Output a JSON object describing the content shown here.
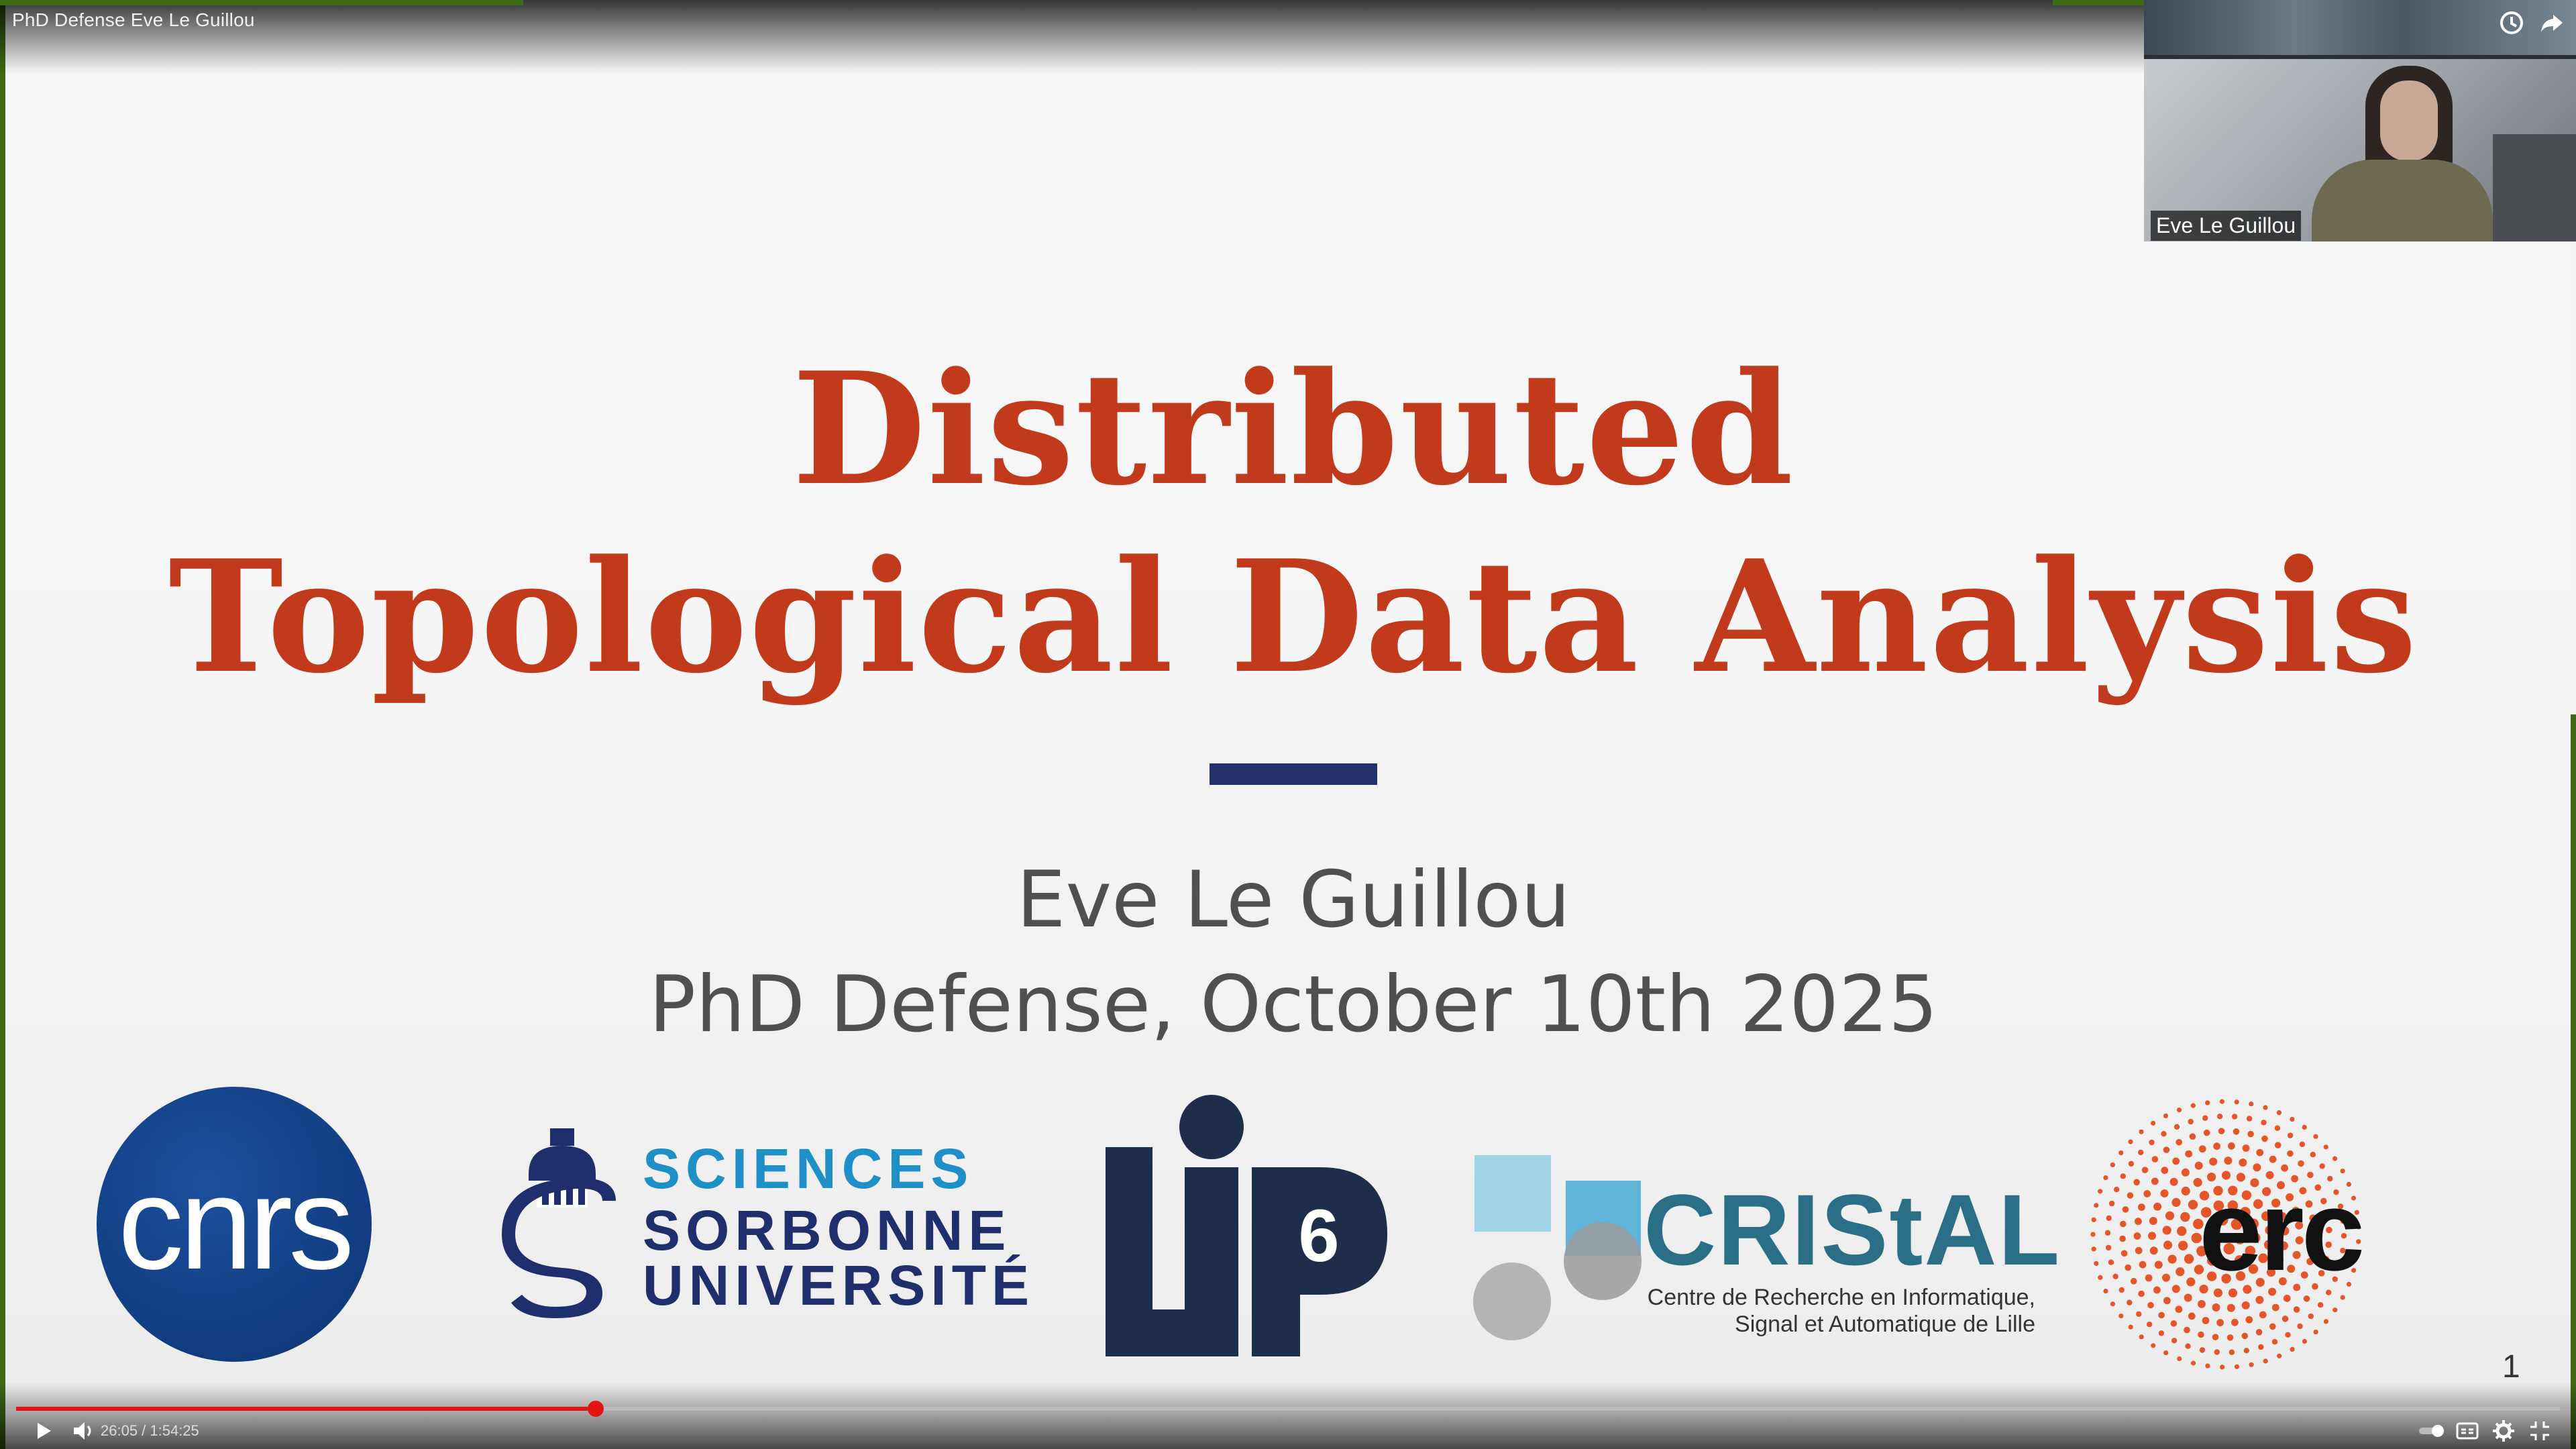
{
  "video": {
    "title": "PhD Defense Eve Le Guillou",
    "current_time": "26:05",
    "duration": "1:54:25",
    "time_display": "26:05 / 1:54:25",
    "progress": 0.2279
  },
  "webcam": {
    "speaker_name": "Eve Le Guillou"
  },
  "slide": {
    "title_line1": "Distributed",
    "title_line2": "Topological Data Analysis",
    "author": "Eve Le Guillou",
    "event": "PhD Defense, October 10th 2025",
    "page_number": "1",
    "logos": {
      "cnrs": "cnrs",
      "sorbonne_line1": "SCIENCES",
      "sorbonne_line2": "SORBONNE",
      "sorbonne_line3": "UNIVERSITÉ",
      "lip6": "LIP6",
      "cristal_name": "CRIStAL",
      "cristal_desc1": "Centre de Recherche en Informatique,",
      "cristal_desc2": "Signal et Automatique de Lille",
      "erc": "erc"
    }
  },
  "colors": {
    "title_red": "#c23a1c",
    "divider_navy": "#24306a",
    "progress_red": "#e21414",
    "sorbonne_blue": "#1f2f6d",
    "sorbonne_cyan": "#1f8fc7",
    "lip6_navy": "#1e2d4a",
    "cristal_teal": "#2b6f86",
    "erc_orange": "#e4552a"
  },
  "icons": {
    "watch_later": "clock-icon",
    "share": "share-icon",
    "play": "play-icon",
    "volume": "volume-icon",
    "autoplay": "autoplay-toggle-icon",
    "captions": "captions-icon",
    "settings": "gear-icon",
    "fullscreen": "exit-fullscreen-icon"
  }
}
